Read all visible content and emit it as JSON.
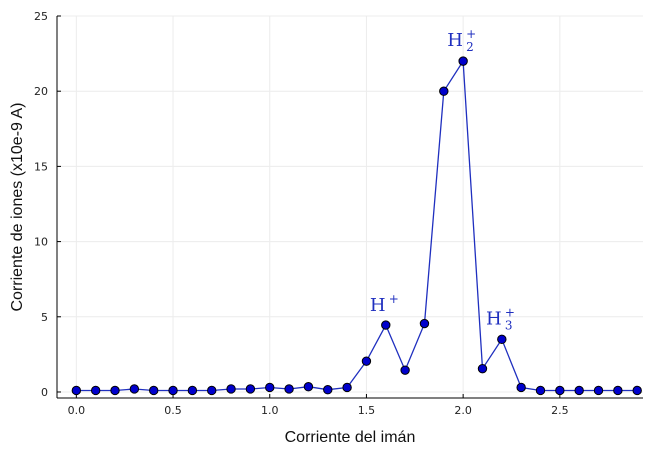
{
  "chart_data": {
    "type": "line",
    "title": "",
    "xlabel": "Corriente del imán",
    "ylabel": "Corriente de iones (x10e-9 A)",
    "xlim": [
      -0.1,
      2.93
    ],
    "ylim": [
      -0.4,
      25
    ],
    "x_ticks": [
      "0.0",
      "0.5",
      "1.0",
      "1.5",
      "2.0",
      "2.5"
    ],
    "y_ticks": [
      "0",
      "5",
      "10",
      "15",
      "20",
      "25"
    ],
    "grid": true,
    "legend": "none",
    "series": [
      {
        "color": "#1f2fbf",
        "marker_color": "#0000cc",
        "x": [
          0.0,
          0.1,
          0.2,
          0.3,
          0.4,
          0.5,
          0.6,
          0.7,
          0.8,
          0.9,
          1.0,
          1.1,
          1.2,
          1.3,
          1.4,
          1.5,
          1.6,
          1.7,
          1.8,
          1.9,
          2.0,
          2.1,
          2.2,
          2.3,
          2.4,
          2.5,
          2.6,
          2.7,
          2.8,
          2.9
        ],
        "y": [
          0.1,
          0.1,
          0.1,
          0.2,
          0.1,
          0.1,
          0.1,
          0.1,
          0.2,
          0.2,
          0.3,
          0.2,
          0.35,
          0.15,
          0.3,
          2.05,
          4.45,
          1.45,
          4.55,
          20.0,
          22.0,
          1.55,
          3.5,
          0.3,
          0.1,
          0.1,
          0.1,
          0.1,
          0.1,
          0.1
        ]
      }
    ],
    "annotations": [
      {
        "base": "H",
        "sup": "+",
        "sub": "",
        "x": 1.6,
        "y": 5.4
      },
      {
        "base": "H",
        "sup": "+",
        "sub": "2",
        "x": 2.0,
        "y": 23.0
      },
      {
        "base": "H",
        "sup": "+",
        "sub": "3",
        "x": 2.2,
        "y": 4.5
      }
    ]
  }
}
